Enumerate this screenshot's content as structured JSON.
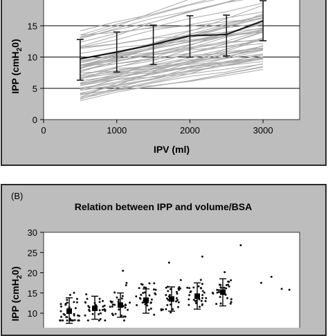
{
  "chart_data": [
    {
      "type": "line",
      "panel_label": "",
      "title": "",
      "xlabel": "IPV (ml)",
      "ylabel": "IPP (cmH",
      "ylabel_sub": "2",
      "ylabel_tail": "0)",
      "xlim": [
        0,
        3500
      ],
      "ylim": [
        0,
        20
      ],
      "xticks": [
        0,
        1000,
        2000,
        3000
      ],
      "yticks": [
        0,
        5,
        10,
        15
      ],
      "grid": "horizontal",
      "individual_lines": {
        "color": "#a9a9a9",
        "x": [
          500,
          1000,
          1500,
          2000,
          2500,
          3000
        ],
        "count": 60
      },
      "mean_series": {
        "color": "#1a1a1a",
        "x": [
          500,
          1000,
          1500,
          2000,
          2500,
          3000
        ],
        "values": [
          9.7,
          10.8,
          12.0,
          13.4,
          13.6,
          15.8
        ],
        "err_low": [
          6.3,
          7.6,
          8.8,
          10.0,
          10.2,
          12.6
        ],
        "err_high": [
          12.8,
          14.0,
          15.1,
          16.6,
          16.7,
          19.0
        ]
      }
    },
    {
      "type": "scatter",
      "panel_label": "(B)",
      "title": "Relation between IPP and volume/BSA",
      "xlabel": "",
      "ylabel": "IPP (cmH",
      "ylabel_sub": "2",
      "ylabel_tail": "0)",
      "ylim": [
        0,
        30
      ],
      "yticks": [
        10,
        15,
        20,
        25,
        30
      ],
      "xlim": [
        0,
        10
      ],
      "point_color": "#111111",
      "groups": [
        {
          "x": 1.0,
          "mean": 10.5,
          "err_low": 7.5,
          "err_high": 13.8
        },
        {
          "x": 2.0,
          "mean": 11.2,
          "err_low": 8.5,
          "err_high": 14.2
        },
        {
          "x": 3.0,
          "mean": 12.0,
          "err_low": 9.0,
          "err_high": 15.0
        },
        {
          "x": 4.0,
          "mean": 13.2,
          "err_low": 10.0,
          "err_high": 16.0
        },
        {
          "x": 5.0,
          "mean": 13.5,
          "err_low": 10.5,
          "err_high": 16.5
        },
        {
          "x": 6.0,
          "mean": 14.2,
          "err_low": 11.0,
          "err_high": 17.5
        },
        {
          "x": 7.0,
          "mean": 15.2,
          "err_low": 11.8,
          "err_high": 18.5
        }
      ]
    }
  ]
}
